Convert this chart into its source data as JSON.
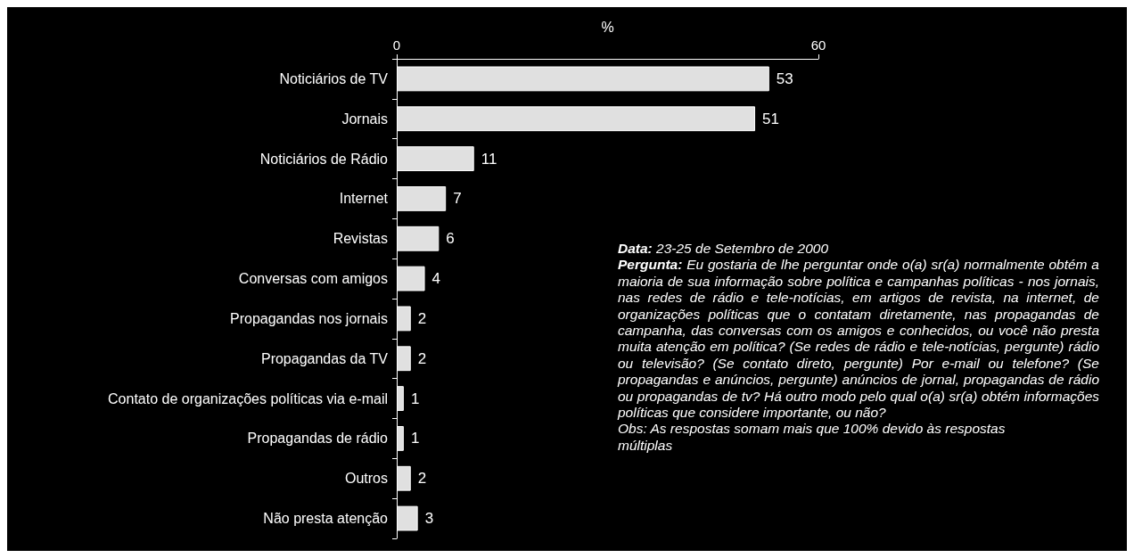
{
  "chart_data": {
    "type": "bar",
    "orientation": "horizontal",
    "xlabel": "%",
    "categories": [
      "Noticiários de TV",
      "Jornais",
      "Noticiários de Rádio",
      "Internet",
      "Revistas",
      "Conversas com amigos",
      "Propagandas nos jornais",
      "Propagandas da TV",
      "Contato de organizações políticas via e-mail",
      "Propagandas de rádio",
      "Outros",
      "Não presta atenção"
    ],
    "values": [
      53,
      51,
      11,
      7,
      6,
      4,
      2,
      2,
      1,
      1,
      2,
      3
    ],
    "color": "#e0e0e0",
    "xlim": [
      0,
      60
    ],
    "xticks": [
      0,
      60
    ],
    "data_labels": true,
    "grid": false,
    "annotations": [
      "Data: 23-25 de Setembro de 2000",
      "Pergunta: Eu gostaria de lhe perguntar onde o(a) sr(a) normalmente obtém a maioria de sua informação sobre política e campanhas políticas - nos jornais, nas redes de rádio e tele-notícias, em artigos de revista, na internet, de organizações políticas que o contatam diretamente, nas propagandas de campanha, das conversas com os amigos e conhecidos, ou você não presta muita atenção em política? (Se redes de rádio e tele-notícias, pergunte) rádio ou televisão? (Se contato direto, pergunte) Por e-mail ou telefone? (Se propagandas e anúncios, pergunte) anúncios de jornal, propagandas de rádio ou propagandas de tv? Há outro modo pelo qual o(a) sr(a) obtém informações políticas que considere importante, ou não?",
      "Obs: As respostas  somam mais que 100% devido às respostas múltiplas"
    ]
  }
}
